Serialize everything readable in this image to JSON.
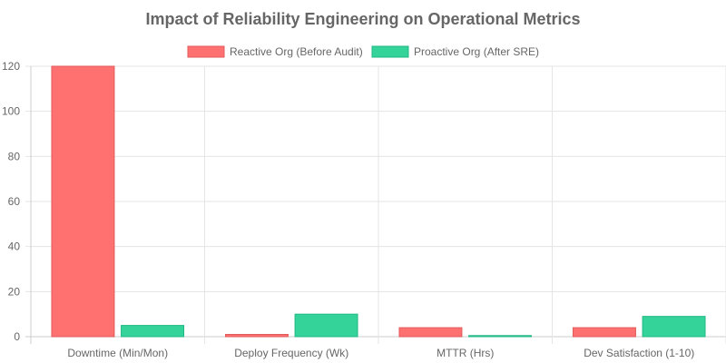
{
  "chart_data": {
    "type": "bar",
    "title": "Impact of Reliability Engineering on Operational Metrics",
    "categories": [
      "Downtime (Min/Mon)",
      "Deploy Frequency (Wk)",
      "MTTR (Hrs)",
      "Dev Satisfaction (1-10)"
    ],
    "series": [
      {
        "name": "Reactive Org (Before Audit)",
        "values": [
          120,
          1,
          4,
          4
        ],
        "color": "#ff7070",
        "border": "#e05a5a"
      },
      {
        "name": "Proactive Org (After SRE)",
        "values": [
          5,
          10,
          0.5,
          9
        ],
        "color": "#34d399",
        "border": "#22b884"
      }
    ],
    "ylim": [
      0,
      120
    ],
    "yticks": [
      "0",
      "20",
      "40",
      "60",
      "80",
      "100",
      "120"
    ],
    "grid": true,
    "legend": "top"
  }
}
